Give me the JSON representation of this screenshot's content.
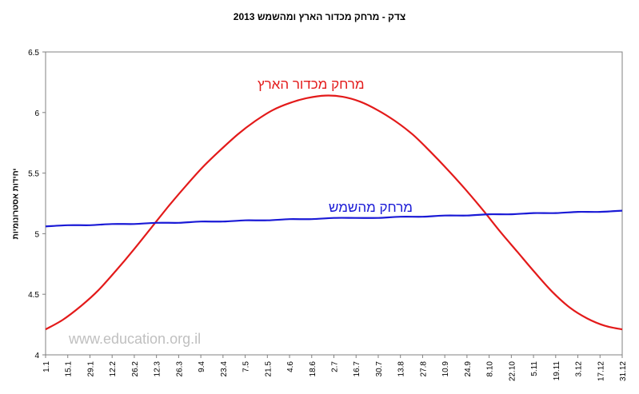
{
  "chart_data": {
    "type": "line",
    "title": "צדק - מרחק מכדור הארץ ומהשמש 2013",
    "ylabel": "יחידות אסטרונומיות",
    "xlabel": "",
    "ylim": [
      4,
      6.5
    ],
    "yticks": [
      "4",
      "4.5",
      "5",
      "5.5",
      "6",
      "6.5"
    ],
    "grid": false,
    "xtick_labels": [
      "1.1",
      "15.1",
      "29.1",
      "12.2",
      "26.2",
      "12.3",
      "26.3",
      "9.4",
      "23.4",
      "7.5",
      "21.5",
      "4.6",
      "18.6",
      "2.7",
      "16.7",
      "30.7",
      "13.8",
      "27.8",
      "10.9",
      "24.9",
      "8.10",
      "22.10",
      "5.11",
      "19.11",
      "3.12",
      "17.12",
      "31.12"
    ],
    "series": [
      {
        "name": "מרחק מכדור הארץ",
        "color": "#e31a1a",
        "values": [
          4.21,
          4.29,
          4.4,
          4.53,
          4.69,
          4.86,
          5.04,
          5.22,
          5.39,
          5.55,
          5.69,
          5.82,
          5.93,
          6.02,
          6.08,
          6.12,
          6.14,
          6.13,
          6.09,
          6.02,
          5.93,
          5.82,
          5.68,
          5.53,
          5.37,
          5.2,
          5.02,
          4.85,
          4.68,
          4.52,
          4.39,
          4.3,
          4.24,
          4.21
        ]
      },
      {
        "name": "מרחק מהשמש",
        "color": "#1a1ad6",
        "values": [
          5.06,
          5.07,
          5.07,
          5.08,
          5.08,
          5.09,
          5.09,
          5.1,
          5.1,
          5.11,
          5.11,
          5.12,
          5.12,
          5.13,
          5.13,
          5.13,
          5.14,
          5.14,
          5.15,
          5.15,
          5.16,
          5.16,
          5.17,
          5.17,
          5.18,
          5.18,
          5.19
        ]
      }
    ]
  },
  "watermark": "www.education.org.il"
}
